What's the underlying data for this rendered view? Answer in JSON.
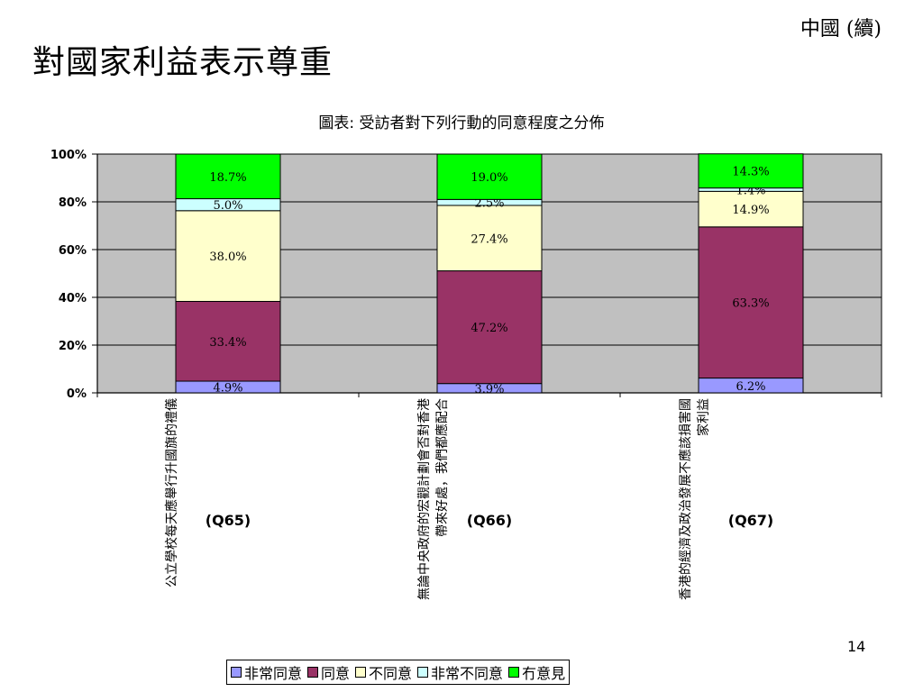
{
  "header": {
    "corner_text": "中國 (續)",
    "title": "對國家利益表示尊重",
    "page_number": "14"
  },
  "chart_data": {
    "type": "bar",
    "stacked": true,
    "title": "圖表: 受訪者對下列行動的同意程度之分佈",
    "ylim": [
      0,
      100
    ],
    "yticks": [
      "0%",
      "20%",
      "40%",
      "60%",
      "80%",
      "100%"
    ],
    "grid": true,
    "legend_position": "bottom",
    "categories": [
      {
        "text": [
          "公立學校每天應舉行升國旗的禮儀"
        ],
        "code": "(Q65)"
      },
      {
        "text": [
          "無論中央政府的宏觀計劃會否對香港",
          "帶來好處，我們都應配合"
        ],
        "code": "(Q66)"
      },
      {
        "text": [
          "香港的經濟及政治發展不應該損害國",
          "家利益"
        ],
        "code": "(Q67)"
      }
    ],
    "series": [
      {
        "name": "非常同意",
        "color": "#9999ff",
        "values": [
          4.9,
          3.9,
          6.2
        ],
        "labels": [
          "4.9%",
          "3.9%",
          "6.2%"
        ]
      },
      {
        "name": "同意",
        "color": "#993366",
        "values": [
          33.4,
          47.2,
          63.3
        ],
        "labels": [
          "33.4%",
          "47.2%",
          "63.3%"
        ]
      },
      {
        "name": "不同意",
        "color": "#ffffcc",
        "values": [
          38.0,
          27.4,
          14.9
        ],
        "labels": [
          "38.0%",
          "27.4%",
          "14.9%"
        ]
      },
      {
        "name": "非常不同意",
        "color": "#ccffff",
        "values": [
          5.0,
          2.5,
          1.4
        ],
        "labels": [
          "5.0%",
          "2.5%",
          "1.4%"
        ]
      },
      {
        "name": "冇意見",
        "color": "#00ff00",
        "values": [
          18.7,
          19.0,
          14.3
        ],
        "labels": [
          "18.7%",
          "19.0%",
          "14.3%"
        ]
      }
    ],
    "plot_background": "#c0c0c0"
  }
}
